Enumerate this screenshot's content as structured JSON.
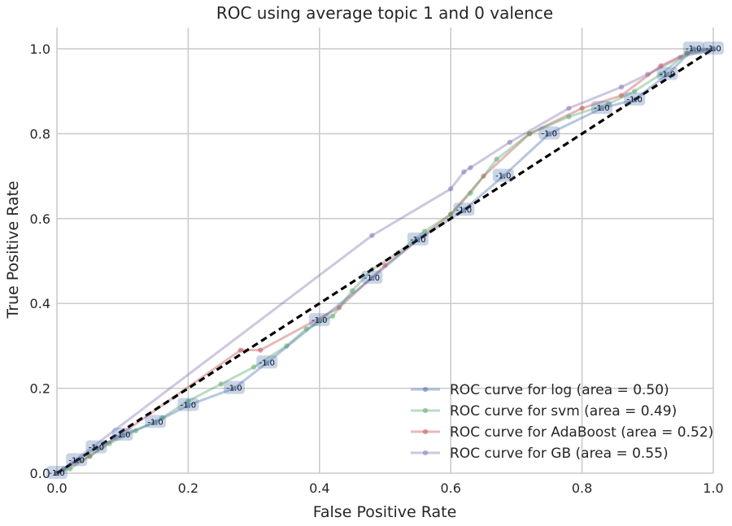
{
  "chart_data": {
    "type": "line",
    "title": "ROC using average topic 1 and 0 valence",
    "xlabel": "False Positive Rate",
    "ylabel": "True Positive Rate",
    "xlim": [
      0.0,
      1.0
    ],
    "ylim": [
      0.0,
      1.05
    ],
    "xticks": [
      "0.0",
      "0.2",
      "0.4",
      "0.6",
      "0.8",
      "1.0"
    ],
    "yticks": [
      "0.0",
      "0.2",
      "0.4",
      "0.6",
      "0.8",
      "1.0"
    ],
    "grid": true,
    "legend_position": "lower-right",
    "series": [
      {
        "name": "ROC curve for log (area = 0.50)",
        "color": "#4c72b0",
        "x": [
          0.0,
          0.03,
          0.06,
          0.1,
          0.15,
          0.2,
          0.27,
          0.32,
          0.4,
          0.48,
          0.55,
          0.62,
          0.68,
          0.75,
          0.83,
          0.88,
          0.93,
          0.97,
          1.0
        ],
        "y": [
          0.0,
          0.03,
          0.06,
          0.09,
          0.12,
          0.16,
          0.2,
          0.26,
          0.36,
          0.46,
          0.55,
          0.62,
          0.7,
          0.8,
          0.86,
          0.88,
          0.94,
          1.0,
          1.0
        ],
        "point_labels": [
          "-1.0",
          "-1.0",
          "-1.0",
          "-1.0",
          "-1.0",
          "-1.0",
          "-1.0",
          "-1.0",
          "-1.0",
          "-1.0",
          "-1.0",
          "-1.0",
          "-1.0",
          "-1.0",
          "-1.0",
          "-1.0",
          "-1.0",
          "-1.0",
          "-1.0"
        ]
      },
      {
        "name": "ROC curve for svm (area = 0.49)",
        "color": "#55a868",
        "x": [
          0.0,
          0.02,
          0.05,
          0.08,
          0.12,
          0.16,
          0.2,
          0.25,
          0.3,
          0.35,
          0.38,
          0.42,
          0.45,
          0.48,
          0.52,
          0.56,
          0.6,
          0.63,
          0.67,
          0.72,
          0.78,
          0.84,
          0.88,
          0.92,
          0.96,
          1.0
        ],
        "y": [
          0.0,
          0.01,
          0.04,
          0.07,
          0.1,
          0.13,
          0.17,
          0.21,
          0.25,
          0.3,
          0.34,
          0.37,
          0.43,
          0.48,
          0.52,
          0.57,
          0.61,
          0.66,
          0.74,
          0.8,
          0.84,
          0.87,
          0.9,
          0.94,
          0.99,
          1.0
        ]
      },
      {
        "name": "ROC curve for AdaBoost (area = 0.52)",
        "color": "#c44e52",
        "x": [
          0.0,
          0.05,
          0.28,
          0.31,
          0.43,
          0.5,
          0.6,
          0.65,
          0.72,
          0.8,
          0.86,
          0.92,
          0.96,
          1.0
        ],
        "y": [
          0.0,
          0.04,
          0.29,
          0.29,
          0.39,
          0.49,
          0.61,
          0.7,
          0.8,
          0.86,
          0.89,
          0.96,
          0.99,
          1.0
        ]
      },
      {
        "name": "ROC curve for GB (area = 0.55)",
        "color": "#8172b2",
        "x": [
          0.0,
          0.01,
          0.48,
          0.6,
          0.62,
          0.63,
          0.69,
          0.78,
          0.86,
          0.9,
          0.95,
          1.0
        ],
        "y": [
          0.0,
          0.01,
          0.56,
          0.67,
          0.71,
          0.72,
          0.78,
          0.86,
          0.91,
          0.94,
          0.98,
          1.0
        ]
      }
    ],
    "reference_line": {
      "x": [
        0.0,
        1.0
      ],
      "y": [
        0.0,
        1.0
      ],
      "color": "#000000",
      "style": "dashed"
    }
  }
}
